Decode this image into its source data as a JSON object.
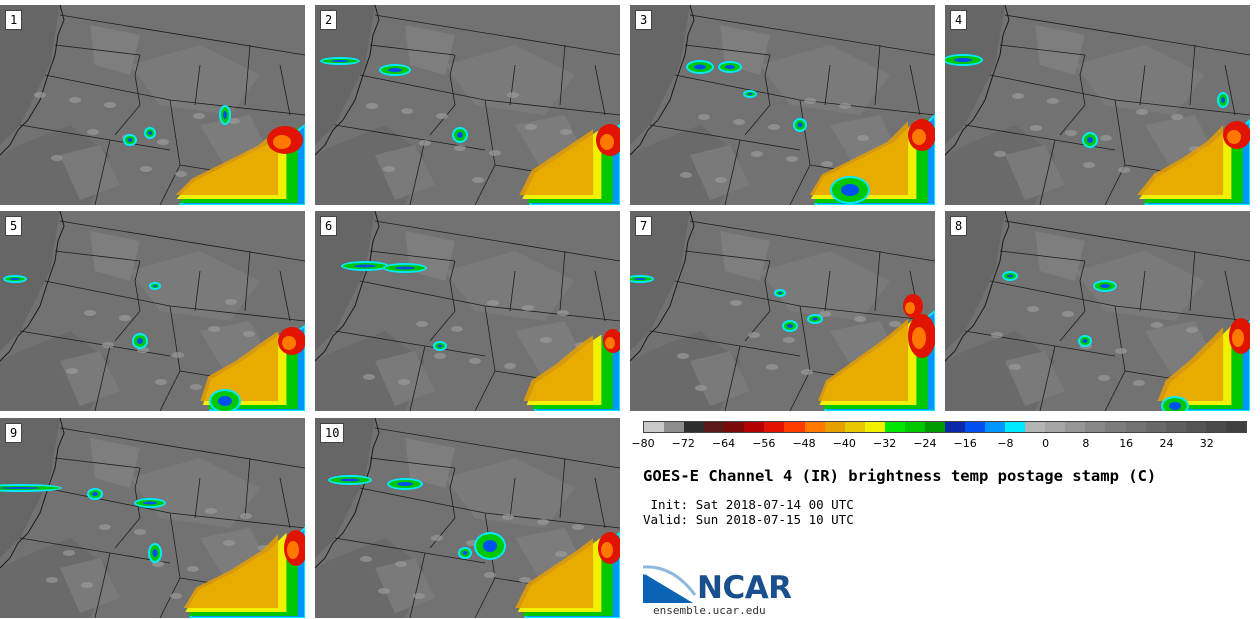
{
  "title": "GOES-E Channel 4 (IR) brightness temp postage stamp (C)",
  "init_label": "Init:",
  "init_value": "Sat 2018-07-14 00 UTC",
  "valid_label": "Valid:",
  "valid_value": "Sun 2018-07-15 10 UTC",
  "logo_text": "NCAR",
  "url": "ensemble.ucar.edu",
  "panels": [
    {
      "label": "1"
    },
    {
      "label": "2"
    },
    {
      "label": "3"
    },
    {
      "label": "4"
    },
    {
      "label": "5"
    },
    {
      "label": "6"
    },
    {
      "label": "7"
    },
    {
      "label": "8"
    },
    {
      "label": "9"
    },
    {
      "label": "10"
    }
  ],
  "colorbar": {
    "min": -80,
    "max": 40,
    "tick_labels": [
      "−80",
      "−72",
      "−64",
      "−56",
      "−48",
      "−40",
      "−32",
      "−24",
      "−16",
      "−8",
      "0",
      "8",
      "16",
      "24",
      "32"
    ],
    "tick_values": [
      -80,
      -72,
      -64,
      -56,
      -48,
      -40,
      -32,
      -24,
      -16,
      -8,
      0,
      8,
      16,
      24,
      32
    ],
    "colors": [
      "#c8c8c8",
      "#8c8c8c",
      "#2e2e2e",
      "#5a1a1a",
      "#7a0a0a",
      "#b40000",
      "#e01400",
      "#ff3c00",
      "#ff7800",
      "#e6a000",
      "#e6c800",
      "#f0f000",
      "#00e600",
      "#00c800",
      "#009a00",
      "#0b28a8",
      "#0050f0",
      "#0096ff",
      "#00eaff",
      "#b4b4b4",
      "#a5a5a5",
      "#969696",
      "#888888",
      "#7c7c7c",
      "#727272",
      "#686868",
      "#5e5e5e",
      "#545454",
      "#4a4a4a",
      "#404040"
    ]
  }
}
